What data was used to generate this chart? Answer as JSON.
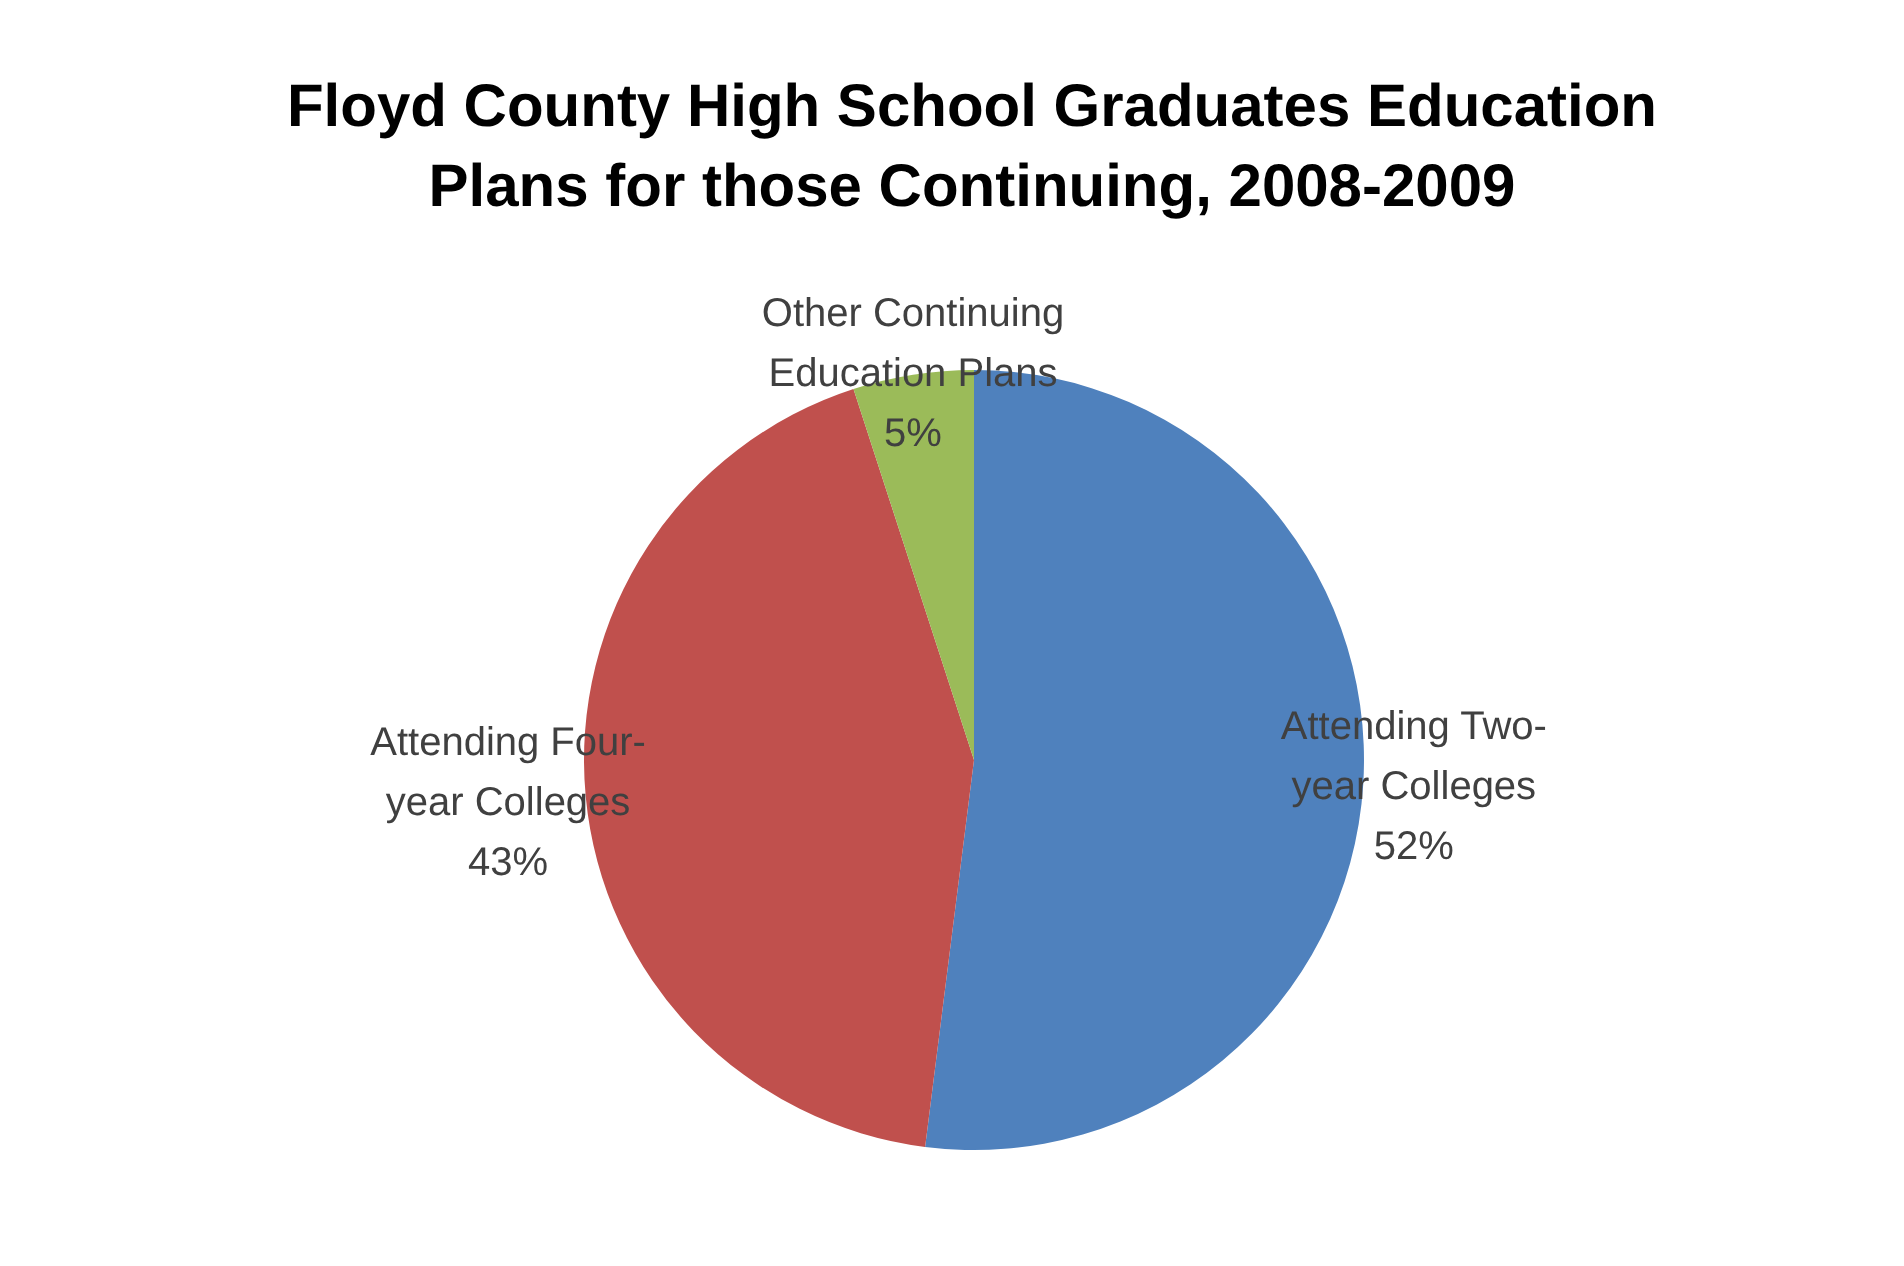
{
  "chart_data": {
    "type": "pie",
    "title": "Floyd County High School Graduates Education Plans for those Continuing, 2008-2009",
    "categories": [
      "Attending Two-year Colleges",
      "Attending Four-year Colleges",
      "Other Continuing Education Plans"
    ],
    "values": [
      52,
      43,
      5
    ],
    "value_labels": [
      "52%",
      "43%",
      "5%"
    ],
    "colors": [
      "#4f81bd",
      "#c0504d",
      "#9bbb59"
    ],
    "legend": false
  }
}
